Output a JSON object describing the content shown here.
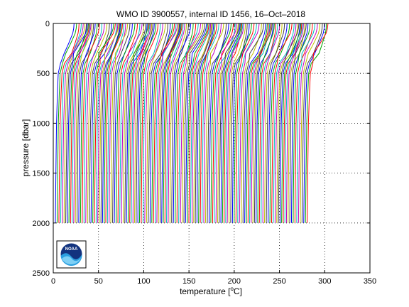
{
  "chart_data": {
    "type": "line",
    "title": "WMO ID 3900557, internal ID 1456, 16–Oct–2018",
    "xlabel_prefix": "temperature [",
    "xlabel_sup": "o",
    "xlabel_suffix": "C]",
    "ylabel": "pressure [dbar]",
    "xlim": [
      0,
      350
    ],
    "ylim": [
      2500,
      0
    ],
    "y_reversed": true,
    "x_ticks": [
      0,
      50,
      100,
      150,
      200,
      250,
      300,
      350
    ],
    "x_tick_labels": [
      "0",
      "50",
      "100",
      "150",
      "200",
      "250",
      "300",
      "350"
    ],
    "y_ticks": [
      0,
      500,
      1000,
      1500,
      2000,
      2500
    ],
    "y_tick_labels": [
      "0",
      "500",
      "1000",
      "1500",
      "2000",
      "2500"
    ],
    "grid": "dotted",
    "series_description": "waterfall of successive temperature profiles, each offset along x",
    "profile_count": 150,
    "profile_first_offset_x": 0,
    "profile_last_offset_x": 278,
    "profile_shape": {
      "pressure": [
        0,
        50,
        100,
        200,
        300,
        400,
        500,
        700,
        1000,
        1500,
        2000
      ],
      "temperature": [
        23,
        22.6,
        21.5,
        17,
        12,
        8,
        5.5,
        4.6,
        3.6,
        2.9,
        2.3
      ]
    },
    "colors": [
      "#0000ff",
      "#00aa00",
      "#ff0000",
      "#00bfbf",
      "#bf00bf",
      "#bfbf00",
      "#404040"
    ],
    "logo": {
      "name": "noaa-logo",
      "text": "NOAA"
    }
  }
}
